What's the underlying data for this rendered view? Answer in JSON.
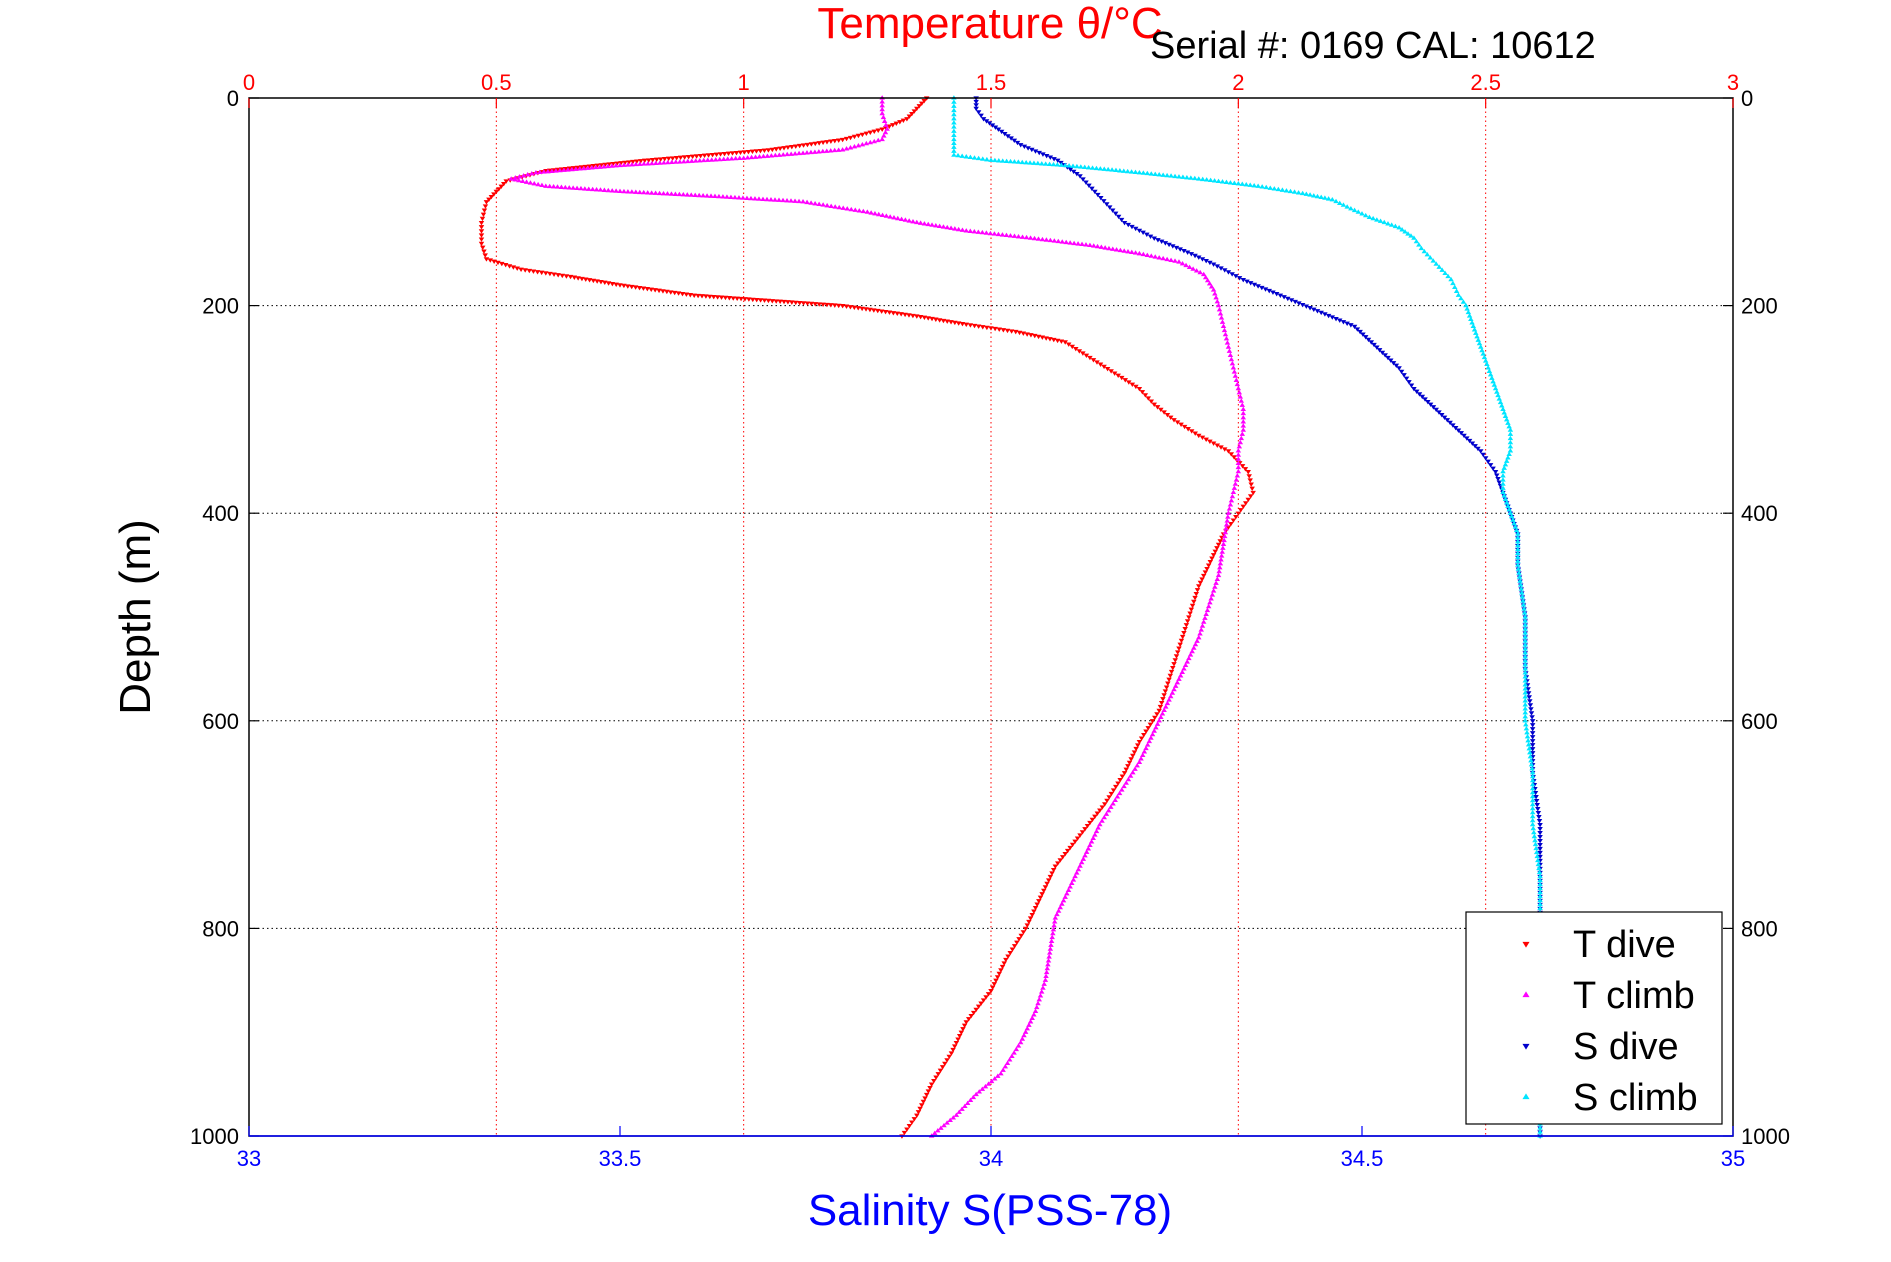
{
  "chart_data": {
    "type": "scatter",
    "title": "Temperature θ/°C",
    "subtitle": "Serial #: 0169 CAL: 10612",
    "xlabel": "Salinity S(PSS-78)",
    "ylabel": "Depth (m)",
    "x_top_label": "Temperature θ/°C",
    "x_top_lim": [
      0,
      3
    ],
    "x_top_ticks": [
      "0",
      "0.5",
      "1",
      "1.5",
      "2",
      "2.5",
      "3"
    ],
    "x_bottom_lim": [
      33,
      35
    ],
    "x_bottom_ticks": [
      "33",
      "33.5",
      "34",
      "34.5",
      "35"
    ],
    "ylim": [
      0,
      1000
    ],
    "y_reversed": true,
    "y_ticks": [
      "0",
      "200",
      "400",
      "600",
      "800",
      "1000"
    ],
    "grid": true,
    "legend_position": "bottom-right",
    "colors": {
      "temperature_axis": "#ff0000",
      "salinity_axis": "#0000ff",
      "grid_temperature": "#ff0000",
      "grid_depth": "#000000"
    },
    "series": [
      {
        "name": "T dive",
        "axis": "temperature",
        "color": "#ff0000",
        "marker": "triangle-down",
        "points": [
          [
            1.37,
            0
          ],
          [
            1.35,
            10
          ],
          [
            1.33,
            20
          ],
          [
            1.28,
            30
          ],
          [
            1.2,
            40
          ],
          [
            1.05,
            50
          ],
          [
            0.8,
            60
          ],
          [
            0.6,
            70
          ],
          [
            0.52,
            80
          ],
          [
            0.5,
            90
          ],
          [
            0.48,
            100
          ],
          [
            0.47,
            120
          ],
          [
            0.47,
            140
          ],
          [
            0.48,
            155
          ],
          [
            0.55,
            165
          ],
          [
            0.65,
            172
          ],
          [
            0.75,
            180
          ],
          [
            0.9,
            190
          ],
          [
            1.05,
            195
          ],
          [
            1.2,
            200
          ],
          [
            1.35,
            210
          ],
          [
            1.45,
            218
          ],
          [
            1.55,
            225
          ],
          [
            1.65,
            235
          ],
          [
            1.7,
            250
          ],
          [
            1.75,
            265
          ],
          [
            1.8,
            280
          ],
          [
            1.83,
            295
          ],
          [
            1.87,
            310
          ],
          [
            1.92,
            325
          ],
          [
            1.98,
            340
          ],
          [
            2.02,
            360
          ],
          [
            2.03,
            380
          ],
          [
            2.0,
            400
          ],
          [
            1.97,
            420
          ],
          [
            1.95,
            440
          ],
          [
            1.92,
            470
          ],
          [
            1.9,
            500
          ],
          [
            1.88,
            530
          ],
          [
            1.86,
            560
          ],
          [
            1.84,
            590
          ],
          [
            1.8,
            620
          ],
          [
            1.77,
            650
          ],
          [
            1.73,
            680
          ],
          [
            1.68,
            710
          ],
          [
            1.63,
            740
          ],
          [
            1.6,
            770
          ],
          [
            1.57,
            800
          ],
          [
            1.53,
            830
          ],
          [
            1.5,
            860
          ],
          [
            1.45,
            890
          ],
          [
            1.42,
            920
          ],
          [
            1.38,
            950
          ],
          [
            1.35,
            980
          ],
          [
            1.32,
            1000
          ]
        ]
      },
      {
        "name": "T climb",
        "axis": "temperature",
        "color": "#ff00ff",
        "marker": "triangle-up",
        "points": [
          [
            1.28,
            0
          ],
          [
            1.28,
            15
          ],
          [
            1.29,
            30
          ],
          [
            1.28,
            40
          ],
          [
            1.2,
            50
          ],
          [
            1.0,
            58
          ],
          [
            0.75,
            65
          ],
          [
            0.58,
            72
          ],
          [
            0.53,
            78
          ],
          [
            0.6,
            85
          ],
          [
            0.75,
            90
          ],
          [
            0.95,
            95
          ],
          [
            1.12,
            100
          ],
          [
            1.25,
            110
          ],
          [
            1.35,
            120
          ],
          [
            1.45,
            128
          ],
          [
            1.58,
            135
          ],
          [
            1.7,
            142
          ],
          [
            1.8,
            150
          ],
          [
            1.88,
            158
          ],
          [
            1.93,
            170
          ],
          [
            1.95,
            185
          ],
          [
            1.96,
            200
          ],
          [
            1.97,
            220
          ],
          [
            1.98,
            240
          ],
          [
            1.99,
            260
          ],
          [
            2.0,
            280
          ],
          [
            2.01,
            300
          ],
          [
            2.01,
            320
          ],
          [
            2.0,
            340
          ],
          [
            2.0,
            360
          ],
          [
            1.99,
            380
          ],
          [
            1.98,
            400
          ],
          [
            1.97,
            430
          ],
          [
            1.96,
            460
          ],
          [
            1.94,
            490
          ],
          [
            1.92,
            520
          ],
          [
            1.89,
            550
          ],
          [
            1.86,
            580
          ],
          [
            1.83,
            610
          ],
          [
            1.8,
            640
          ],
          [
            1.76,
            670
          ],
          [
            1.72,
            700
          ],
          [
            1.69,
            730
          ],
          [
            1.66,
            760
          ],
          [
            1.63,
            790
          ],
          [
            1.62,
            820
          ],
          [
            1.61,
            850
          ],
          [
            1.59,
            880
          ],
          [
            1.56,
            910
          ],
          [
            1.52,
            940
          ],
          [
            1.47,
            960
          ],
          [
            1.43,
            980
          ],
          [
            1.38,
            1000
          ]
        ]
      },
      {
        "name": "S dive",
        "axis": "salinity",
        "color": "#0000cc",
        "marker": "triangle-down",
        "points": [
          [
            33.98,
            0
          ],
          [
            33.98,
            10
          ],
          [
            33.99,
            20
          ],
          [
            34.01,
            30
          ],
          [
            34.04,
            45
          ],
          [
            34.09,
            60
          ],
          [
            34.12,
            75
          ],
          [
            34.14,
            90
          ],
          [
            34.16,
            105
          ],
          [
            34.18,
            120
          ],
          [
            34.22,
            135
          ],
          [
            34.27,
            150
          ],
          [
            34.3,
            160
          ],
          [
            34.34,
            175
          ],
          [
            34.39,
            190
          ],
          [
            34.44,
            205
          ],
          [
            34.49,
            220
          ],
          [
            34.52,
            240
          ],
          [
            34.55,
            260
          ],
          [
            34.57,
            280
          ],
          [
            34.6,
            300
          ],
          [
            34.63,
            320
          ],
          [
            34.66,
            340
          ],
          [
            34.68,
            360
          ],
          [
            34.69,
            380
          ],
          [
            34.7,
            400
          ],
          [
            34.71,
            420
          ],
          [
            34.71,
            450
          ],
          [
            34.72,
            500
          ],
          [
            34.72,
            550
          ],
          [
            34.73,
            600
          ],
          [
            34.73,
            650
          ],
          [
            34.74,
            700
          ],
          [
            34.74,
            750
          ],
          [
            34.74,
            800
          ],
          [
            34.74,
            850
          ],
          [
            34.74,
            900
          ],
          [
            34.74,
            950
          ],
          [
            34.74,
            1000
          ]
        ]
      },
      {
        "name": "S climb",
        "axis": "salinity",
        "color": "#00e5ff",
        "marker": "triangle-up",
        "points": [
          [
            33.95,
            0
          ],
          [
            33.95,
            20
          ],
          [
            33.95,
            40
          ],
          [
            33.95,
            55
          ],
          [
            34.0,
            60
          ],
          [
            34.1,
            65
          ],
          [
            34.2,
            72
          ],
          [
            34.28,
            78
          ],
          [
            34.36,
            85
          ],
          [
            34.42,
            92
          ],
          [
            34.46,
            98
          ],
          [
            34.48,
            105
          ],
          [
            34.51,
            115
          ],
          [
            34.55,
            125
          ],
          [
            34.57,
            135
          ],
          [
            34.58,
            145
          ],
          [
            34.6,
            160
          ],
          [
            34.62,
            175
          ],
          [
            34.63,
            190
          ],
          [
            34.64,
            200
          ],
          [
            34.65,
            220
          ],
          [
            34.66,
            240
          ],
          [
            34.67,
            260
          ],
          [
            34.68,
            280
          ],
          [
            34.69,
            300
          ],
          [
            34.7,
            320
          ],
          [
            34.7,
            340
          ],
          [
            34.69,
            360
          ],
          [
            34.69,
            380
          ],
          [
            34.7,
            400
          ],
          [
            34.71,
            420
          ],
          [
            34.71,
            450
          ],
          [
            34.72,
            500
          ],
          [
            34.72,
            550
          ],
          [
            34.72,
            600
          ],
          [
            34.73,
            650
          ],
          [
            34.73,
            700
          ],
          [
            34.74,
            750
          ],
          [
            34.74,
            800
          ],
          [
            34.74,
            850
          ],
          [
            34.74,
            900
          ],
          [
            34.74,
            950
          ],
          [
            34.74,
            1000
          ]
        ]
      }
    ]
  }
}
